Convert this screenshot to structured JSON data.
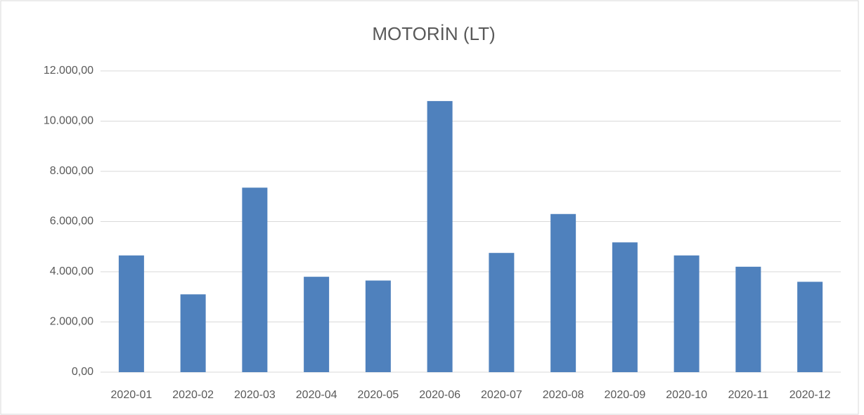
{
  "chart_data": {
    "type": "bar",
    "title": "MOTORİN (LT)",
    "categories": [
      "2020-01",
      "2020-02",
      "2020-03",
      "2020-04",
      "2020-05",
      "2020-06",
      "2020-07",
      "2020-08",
      "2020-09",
      "2020-10",
      "2020-11",
      "2020-12"
    ],
    "values": [
      4650,
      3100,
      7350,
      3800,
      3650,
      10800,
      4750,
      6300,
      5170,
      4650,
      4200,
      3600
    ],
    "color": "#4f81bd",
    "ylim": [
      0,
      12000
    ],
    "yticks": [
      {
        "value": 0,
        "label": "0,00"
      },
      {
        "value": 2000,
        "label": "2.000,00"
      },
      {
        "value": 4000,
        "label": "4.000,00"
      },
      {
        "value": 6000,
        "label": "6.000,00"
      },
      {
        "value": 8000,
        "label": "8.000,00"
      },
      {
        "value": 10000,
        "label": "10.000,00"
      },
      {
        "value": 12000,
        "label": "12.000,00"
      }
    ],
    "grid": true
  }
}
